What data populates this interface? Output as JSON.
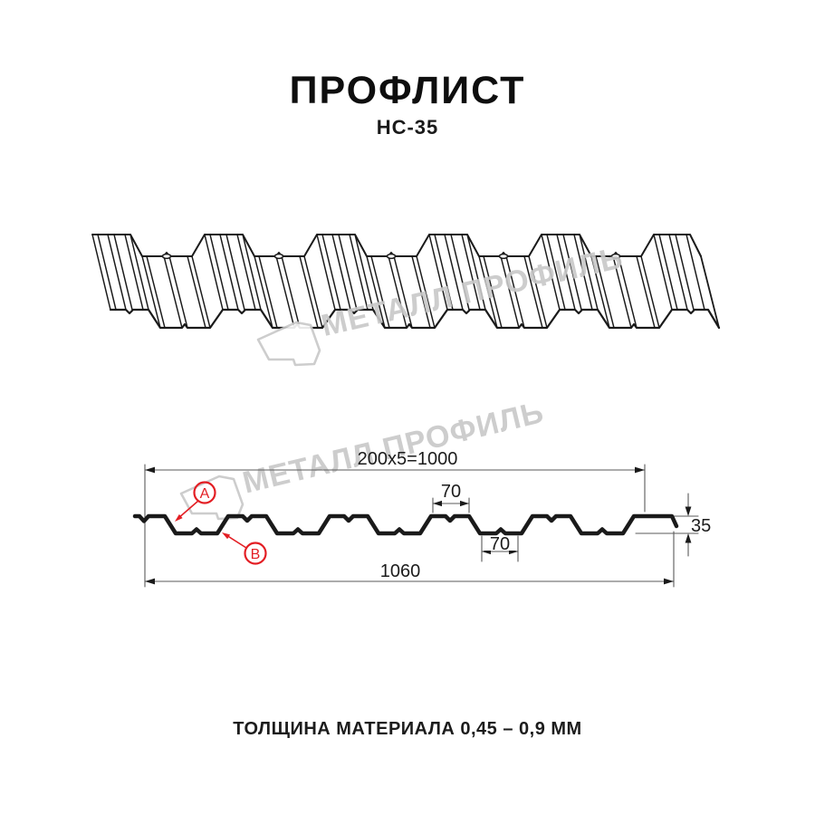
{
  "header": {
    "title": "ПРОФЛИСТ",
    "subtitle": "НС-35"
  },
  "watermark": {
    "brand": "МЕТАЛЛ ПРОФИЛЬ"
  },
  "drawing": {
    "profile_name": "НС-35",
    "dims": {
      "pitch_total": "200x5=1000",
      "rib_top_width": "70",
      "rib_bottom_width": "70",
      "profile_height": "35",
      "overall_width": "1060"
    },
    "face_labels": {
      "a": "А",
      "b": "В"
    },
    "colors": {
      "accent_red": "#e31e24",
      "watermark_gray": "#c8c8c8",
      "line_black": "#1a1a1a",
      "dim_gray": "#5a5a5a"
    }
  },
  "footer": {
    "note": "ТОЛЩИНА МАТЕРИАЛА 0,45 – 0,9 ММ"
  }
}
